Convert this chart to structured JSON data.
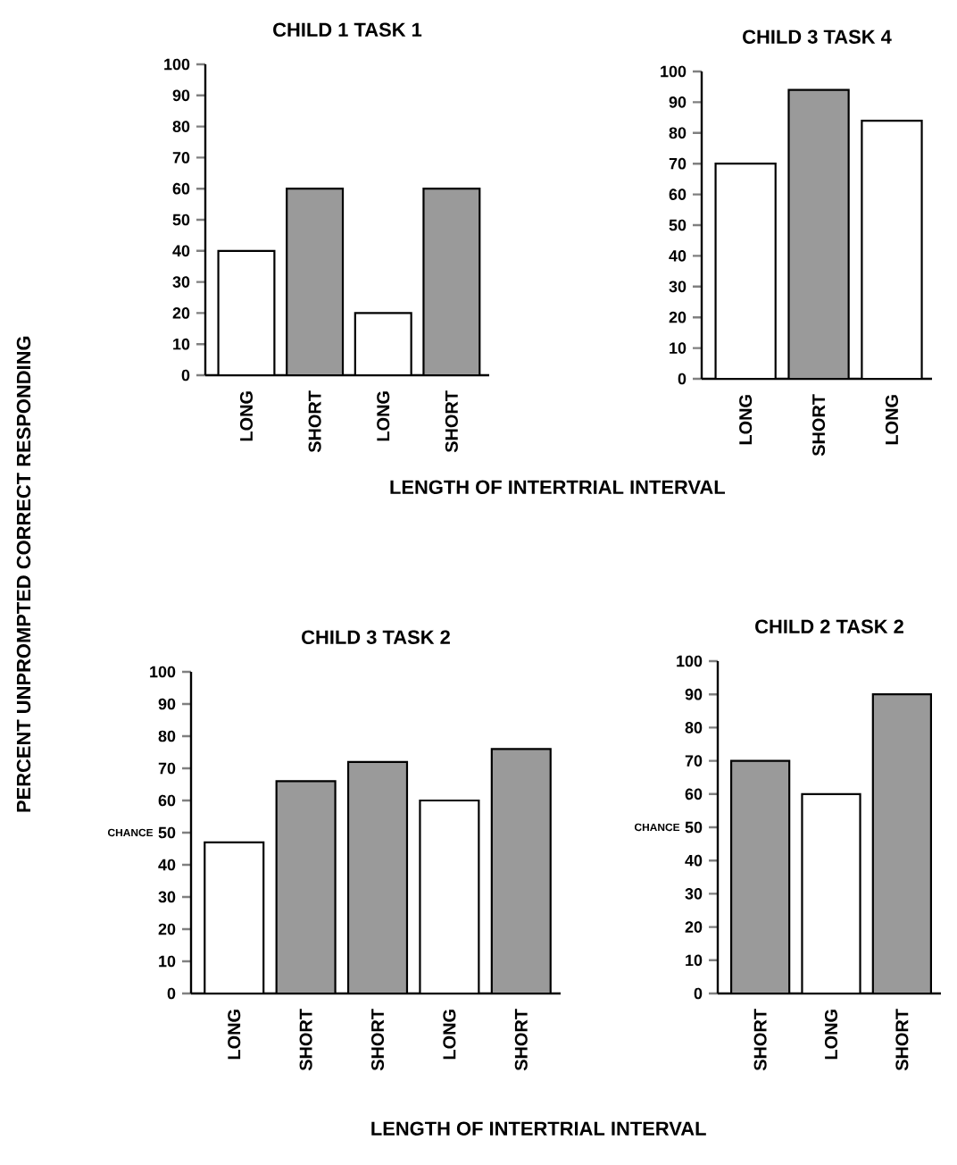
{
  "chart_data": [
    {
      "type": "bar",
      "title": "CHILD 1 TASK 1",
      "xlabel": "LENGTH OF INTERTRIAL INTERVAL",
      "ylabel": "PERCENT UNPROMPTED CORRECT RESPONDING",
      "categories": [
        "LONG",
        "SHORT",
        "LONG",
        "SHORT"
      ],
      "values": [
        40,
        60,
        20,
        60
      ],
      "colors": [
        "#ffffff",
        "#9a9a9a",
        "#ffffff",
        "#9a9a9a"
      ],
      "ylim": [
        0,
        100
      ],
      "yticks": [
        0,
        10,
        20,
        30,
        40,
        50,
        60,
        70,
        80,
        90,
        100
      ]
    },
    {
      "type": "bar",
      "title": "CHILD 3 TASK 4",
      "categories": [
        "LONG",
        "SHORT",
        "LONG"
      ],
      "values": [
        70,
        94,
        84
      ],
      "colors": [
        "#ffffff",
        "#9a9a9a",
        "#ffffff"
      ],
      "ylim": [
        0,
        100
      ],
      "yticks": [
        0,
        10,
        20,
        30,
        40,
        50,
        60,
        70,
        80,
        90,
        100
      ]
    },
    {
      "type": "bar",
      "title": "CHILD 3 TASK 2",
      "xlabel": "LENGTH OF INTERTRIAL INTERVAL",
      "categories": [
        "LONG",
        "SHORT",
        "SHORT",
        "LONG",
        "SHORT"
      ],
      "values": [
        47,
        66,
        72,
        60,
        76
      ],
      "colors": [
        "#ffffff",
        "#9a9a9a",
        "#9a9a9a",
        "#ffffff",
        "#9a9a9a"
      ],
      "ylim": [
        0,
        100
      ],
      "yticks": [
        0,
        10,
        20,
        30,
        40,
        50,
        60,
        70,
        80,
        90,
        100
      ],
      "annotations": [
        "CHANCE"
      ]
    },
    {
      "type": "bar",
      "title": "CHILD 2 TASK 2",
      "categories": [
        "SHORT",
        "LONG",
        "SHORT"
      ],
      "values": [
        70,
        60,
        90
      ],
      "colors": [
        "#9a9a9a",
        "#ffffff",
        "#9a9a9a"
      ],
      "ylim": [
        0,
        100
      ],
      "yticks": [
        0,
        10,
        20,
        30,
        40,
        50,
        60,
        70,
        80,
        90,
        100
      ],
      "annotations": [
        "CHANCE"
      ]
    }
  ]
}
